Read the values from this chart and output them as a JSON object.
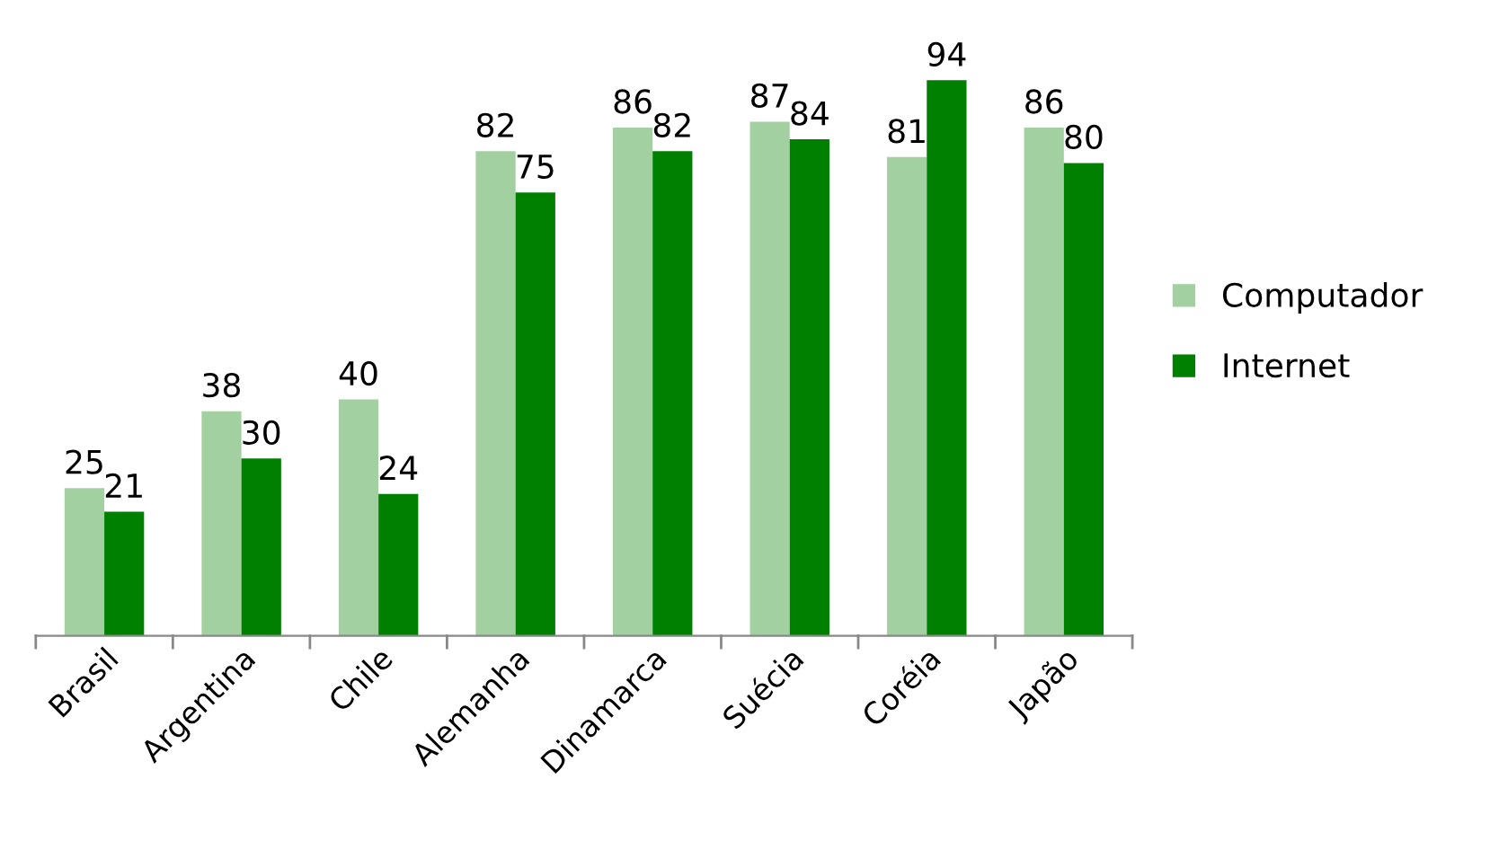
{
  "chart_data": {
    "type": "bar",
    "categories": [
      "Brasil",
      "Argentina",
      "Chile",
      "Alemanha",
      "Dinamarca",
      "Suécia",
      "Coréia",
      "Japão"
    ],
    "series": [
      {
        "name": "Computador",
        "color": "#a3d0a0",
        "values": [
          25,
          38,
          40,
          82,
          86,
          87,
          81,
          86
        ]
      },
      {
        "name": "Internet",
        "color": "#008000",
        "values": [
          21,
          30,
          24,
          75,
          82,
          84,
          94,
          80
        ]
      }
    ],
    "data_labels": true,
    "legend": "right",
    "grid": false
  }
}
